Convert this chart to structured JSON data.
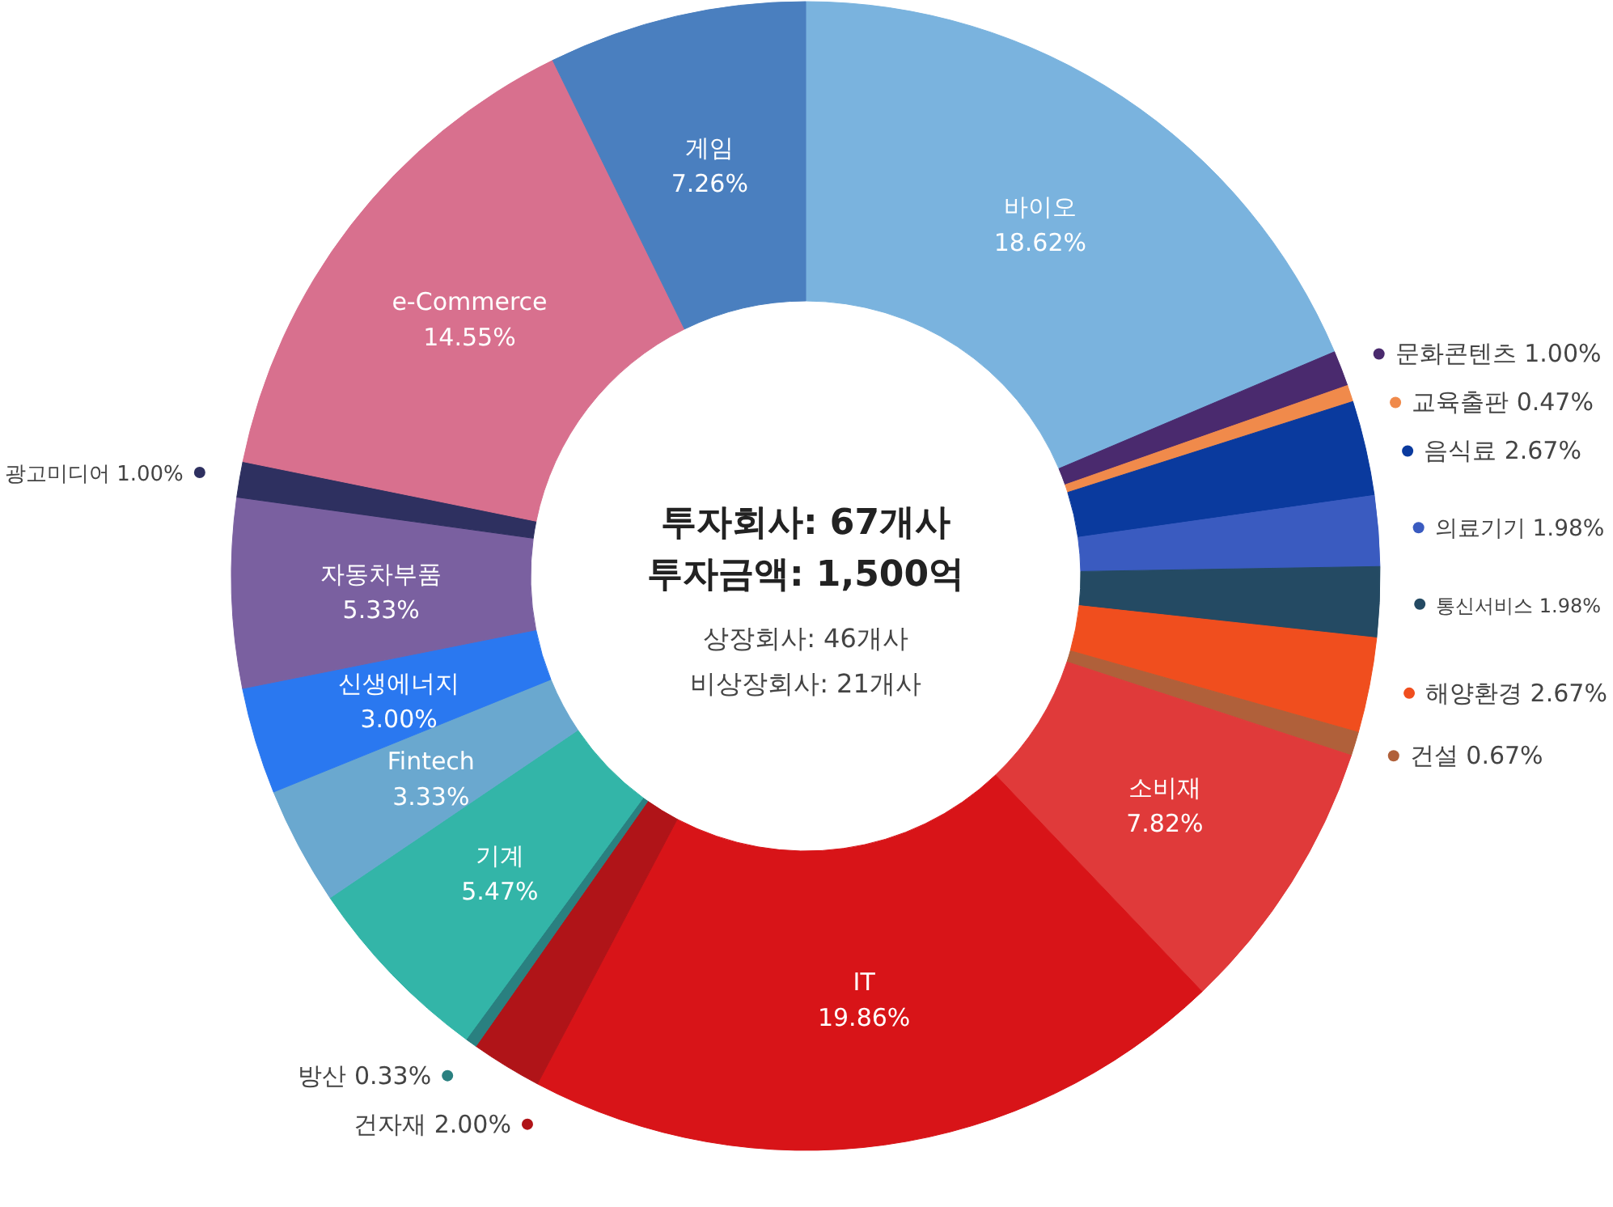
{
  "chart_data": {
    "type": "donut",
    "legend": "right",
    "title": "투자회사: 67개사",
    "subtitle": "투자금액: 1,500억",
    "annotations": [
      "상장회사: 46개사",
      "비상장회사: 21개사"
    ],
    "categories": [
      "바이오",
      "문화콘텐츠",
      "교육출판",
      "음식료",
      "의료기기",
      "통신서비스",
      "해양환경",
      "건설",
      "소비재",
      "IT",
      "건자재",
      "방산",
      "기계",
      "Fintech",
      "신생에너지",
      "자동차부품",
      "광고미디어",
      "e-Commerce",
      "게임"
    ],
    "values": [
      18.62,
      1.0,
      0.47,
      2.67,
      1.98,
      1.98,
      2.67,
      0.67,
      7.82,
      19.86,
      2.0,
      0.33,
      5.47,
      3.33,
      3.0,
      5.33,
      1.0,
      14.55,
      7.26
    ],
    "value_labels": [
      "18.62%",
      "1.00%",
      "0.47%",
      "2.67%",
      "1.98%",
      "1.98%",
      "2.67%",
      "0.67%",
      "7.82%",
      "19.86%",
      "2.00%",
      "0.33%",
      "5.47%",
      "3.33%",
      "3.00%",
      "5.33%",
      "1.00%",
      "14.55%",
      "7.26%"
    ],
    "colors": [
      "#7ab3de",
      "#4a2a6e",
      "#f08a4b",
      "#0a3a9e",
      "#3a5bc0",
      "#244a63",
      "#f04e1e",
      "#b0603a",
      "#e03a3a",
      "#d81418",
      "#b01418",
      "#2a8080",
      "#33b5a8",
      "#6aa8cf",
      "#2a78f0",
      "#7a60a0",
      "#2e3060",
      "#d8708e",
      "#4a7fbf"
    ]
  }
}
